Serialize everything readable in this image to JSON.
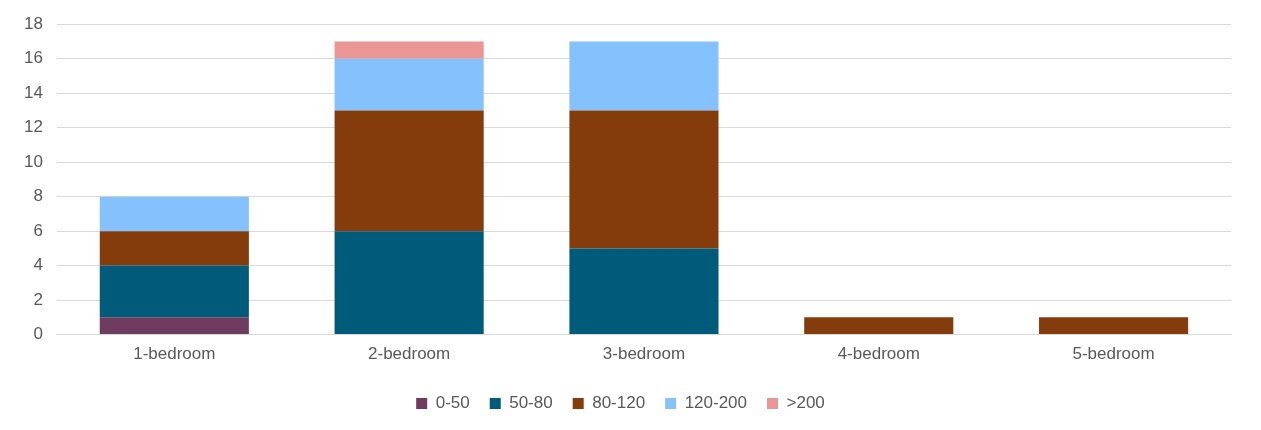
{
  "chart_data": {
    "type": "bar",
    "stacked": true,
    "categories": [
      "1-bedroom",
      "2-bedroom",
      "3-bedroom",
      "4-bedroom",
      "5-bedroom"
    ],
    "series": [
      {
        "name": "0-50",
        "color": "#6f3b5e",
        "values": [
          1,
          null,
          null,
          null,
          null
        ]
      },
      {
        "name": "50-80",
        "color": "#005a7a",
        "values": [
          3,
          6,
          5,
          null,
          null
        ]
      },
      {
        "name": "80-120",
        "color": "#843c0c",
        "values": [
          2,
          7,
          8,
          1,
          1
        ]
      },
      {
        "name": "120-200",
        "color": "#85c1fd",
        "values": [
          2,
          3,
          4,
          null,
          null
        ]
      },
      {
        "name": ">200",
        "color": "#eb9595",
        "values": [
          null,
          1,
          null,
          null,
          null
        ]
      }
    ],
    "ylim": [
      0,
      18
    ],
    "yticks": [
      0,
      2,
      4,
      6,
      8,
      10,
      12,
      14,
      16,
      18
    ],
    "grid": "y",
    "legend": "bottom"
  }
}
